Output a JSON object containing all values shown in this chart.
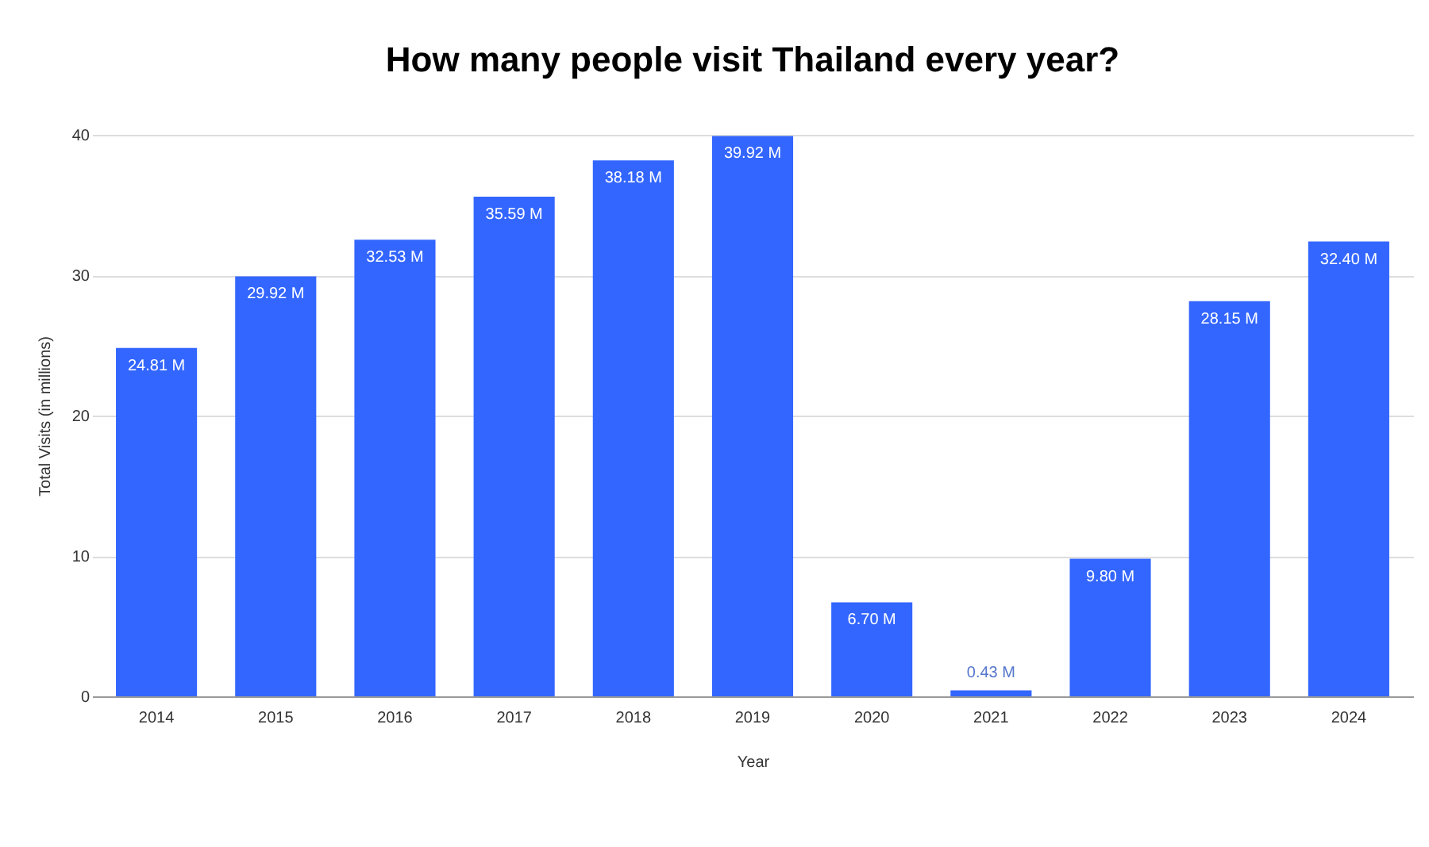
{
  "chart_data": {
    "type": "bar",
    "title": "How many people visit Thailand every year?",
    "xlabel": "Year",
    "ylabel": "Total Visits (in millions)",
    "categories": [
      "2014",
      "2015",
      "2016",
      "2017",
      "2018",
      "2019",
      "2020",
      "2021",
      "2022",
      "2023",
      "2024"
    ],
    "values": [
      24.81,
      29.92,
      32.53,
      35.59,
      38.18,
      39.92,
      6.7,
      0.43,
      9.8,
      28.15,
      32.4
    ],
    "value_labels": [
      "24.81 M",
      "29.92 M",
      "32.53 M",
      "35.59 M",
      "38.18 M",
      "39.92 M",
      "6.70 M",
      "0.43 M",
      "9.80 M",
      "28.15 M",
      "32.40 M"
    ],
    "color": "#3366ff",
    "ylim": [
      0,
      40
    ],
    "yticks": [
      0,
      10,
      20,
      30,
      40
    ],
    "grid": "y"
  }
}
